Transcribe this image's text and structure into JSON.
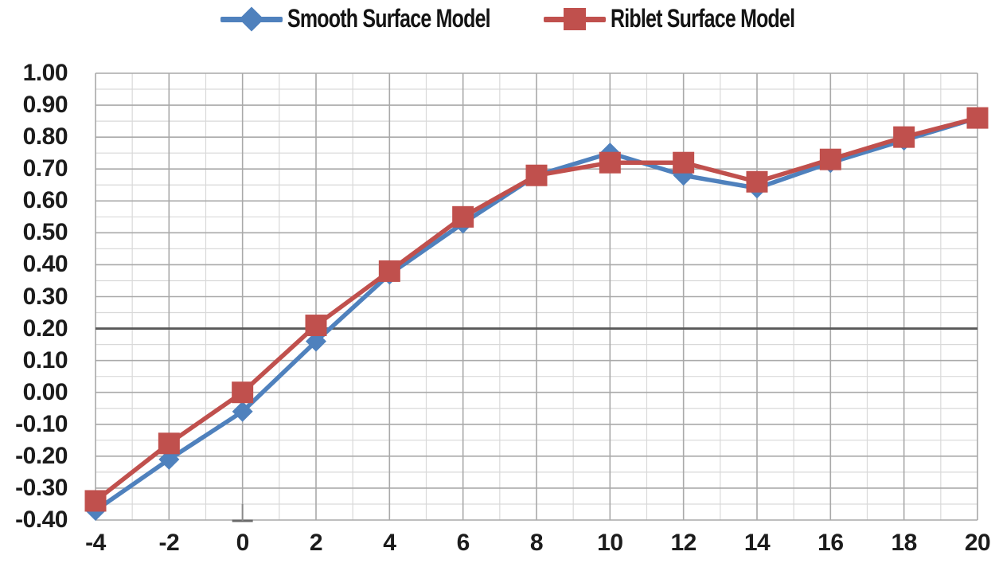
{
  "legend": {
    "items": [
      {
        "label": "Smooth Surface Model",
        "color": "#4F81BD",
        "marker": "diamond"
      },
      {
        "label": "Riblet Surface Model",
        "color": "#C0504D",
        "marker": "square"
      }
    ]
  },
  "chart_data": {
    "type": "line",
    "title": "",
    "xlabel": "",
    "ylabel": "",
    "x": [
      -4,
      -2,
      0,
      2,
      4,
      6,
      8,
      10,
      12,
      14,
      16,
      18,
      20
    ],
    "series": [
      {
        "name": "Smooth Surface Model",
        "color": "#4F81BD",
        "marker": "diamond",
        "values": [
          -0.37,
          -0.21,
          -0.06,
          0.16,
          0.37,
          0.53,
          0.68,
          0.75,
          0.68,
          0.64,
          0.72,
          0.79,
          0.86
        ]
      },
      {
        "name": "Riblet Surface Model",
        "color": "#C0504D",
        "marker": "square",
        "values": [
          -0.34,
          -0.16,
          0.0,
          0.21,
          0.38,
          0.55,
          0.68,
          0.72,
          0.72,
          0.66,
          0.73,
          0.8,
          0.86
        ]
      }
    ],
    "xlim": [
      -4,
      20
    ],
    "ylim": [
      -0.4,
      1.0
    ],
    "x_major_step": 2,
    "x_minor_step": 1,
    "y_major_step": 0.1,
    "y_minor_step": 0.05,
    "emphasized_gridline_y": 0.2,
    "x_tick_labels": [
      "-4",
      "-2",
      "0",
      "2",
      "4",
      "6",
      "8",
      "10",
      "12",
      "14",
      "16",
      "18",
      "20"
    ],
    "y_tick_labels": [
      "1.00",
      "0.90",
      "0.80",
      "0.70",
      "0.60",
      "0.50",
      "0.40",
      "0.30",
      "0.20",
      "0.10",
      "0.00",
      "-0.10",
      "-0.20",
      "-0.30",
      "-0.40"
    ],
    "grid": true,
    "legend_position": "top",
    "grid_minor_color": "#d9d9d9",
    "grid_major_color": "#a9a9a9",
    "grid_bold_color": "#595959"
  }
}
